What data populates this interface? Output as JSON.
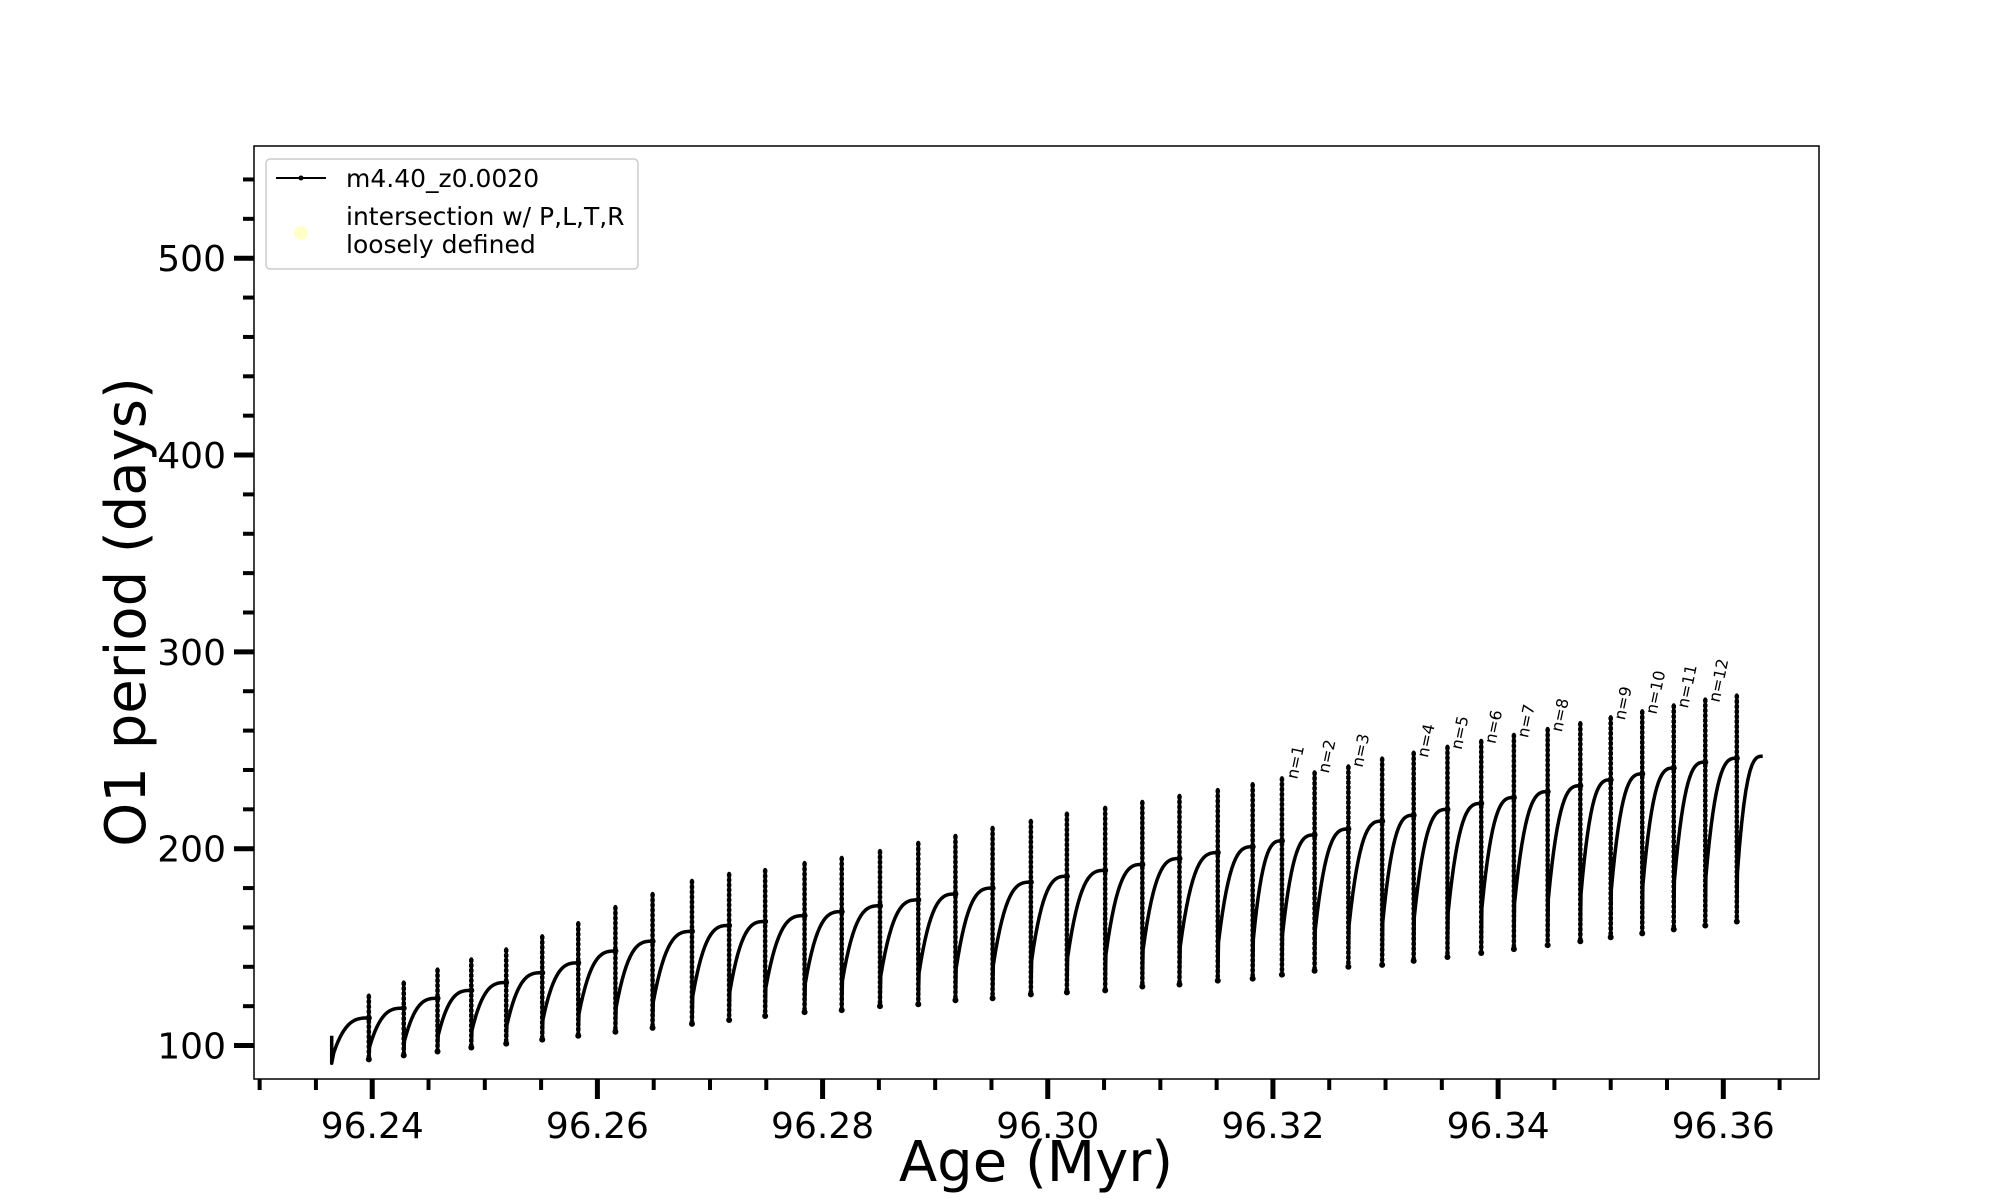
{
  "chart_data": {
    "type": "line",
    "title": "",
    "xlabel": "Age (Myr)",
    "ylabel": "O1 period (days)",
    "xlim": [
      96.2295,
      96.3685
    ],
    "ylim": [
      83,
      557
    ],
    "x_ticks": [
      "96.24",
      "96.26",
      "96.28",
      "96.30",
      "96.32",
      "96.34",
      "96.36"
    ],
    "y_ticks": [
      "100",
      "200",
      "300",
      "400",
      "500"
    ],
    "grid": false,
    "legend_position": "top-left",
    "series": [
      {
        "name": "m4.40_z0.0020",
        "color": "#000000",
        "style": "line with small dot markers",
        "start": {
          "x": 96.2364,
          "y": 105
        },
        "end": {
          "x": 96.3635,
          "y": 247
        },
        "pulses": [
          {
            "x": 96.2397,
            "peak": 114,
            "low": 93
          },
          {
            "x": 96.2428,
            "peak": 119,
            "low": 95
          },
          {
            "x": 96.2458,
            "peak": 124,
            "low": 97
          },
          {
            "x": 96.2488,
            "peak": 128,
            "low": 99
          },
          {
            "x": 96.2519,
            "peak": 132,
            "low": 101
          },
          {
            "x": 96.2551,
            "peak": 137,
            "low": 103
          },
          {
            "x": 96.2583,
            "peak": 142,
            "low": 105
          },
          {
            "x": 96.2616,
            "peak": 148,
            "low": 107
          },
          {
            "x": 96.2649,
            "peak": 153,
            "low": 109
          },
          {
            "x": 96.2684,
            "peak": 158,
            "low": 111
          },
          {
            "x": 96.2717,
            "peak": 161,
            "low": 113
          },
          {
            "x": 96.2749,
            "peak": 163,
            "low": 115
          },
          {
            "x": 96.2784,
            "peak": 166,
            "low": 117
          },
          {
            "x": 96.2817,
            "peak": 168,
            "low": 118
          },
          {
            "x": 96.2851,
            "peak": 171,
            "low": 120
          },
          {
            "x": 96.2885,
            "peak": 174,
            "low": 121
          },
          {
            "x": 96.2918,
            "peak": 177,
            "low": 123
          },
          {
            "x": 96.2951,
            "peak": 180,
            "low": 124
          },
          {
            "x": 96.2985,
            "peak": 183,
            "low": 126
          },
          {
            "x": 96.3017,
            "peak": 186,
            "low": 127
          },
          {
            "x": 96.3051,
            "peak": 189,
            "low": 128
          },
          {
            "x": 96.3084,
            "peak": 192,
            "low": 130
          },
          {
            "x": 96.3117,
            "peak": 195,
            "low": 131
          },
          {
            "x": 96.3151,
            "peak": 198,
            "low": 133
          },
          {
            "x": 96.3182,
            "peak": 201,
            "low": 134
          },
          {
            "x": 96.3208,
            "peak": 204,
            "low": 136
          },
          {
            "x": 96.3237,
            "peak": 207,
            "low": 138
          },
          {
            "x": 96.3267,
            "peak": 210,
            "low": 140
          },
          {
            "x": 96.3297,
            "peak": 214,
            "low": 141
          },
          {
            "x": 96.3325,
            "peak": 217,
            "low": 143
          },
          {
            "x": 96.3355,
            "peak": 220,
            "low": 145
          },
          {
            "x": 96.3385,
            "peak": 223,
            "low": 147
          },
          {
            "x": 96.3414,
            "peak": 226,
            "low": 149
          },
          {
            "x": 96.3444,
            "peak": 229,
            "low": 151
          },
          {
            "x": 96.3473,
            "peak": 232,
            "low": 153
          },
          {
            "x": 96.35,
            "peak": 235,
            "low": 155
          },
          {
            "x": 96.3528,
            "peak": 238,
            "low": 157
          },
          {
            "x": 96.3556,
            "peak": 241,
            "low": 159
          },
          {
            "x": 96.3584,
            "peak": 244,
            "low": 161
          },
          {
            "x": 96.3612,
            "peak": 246,
            "low": 163
          }
        ]
      }
    ],
    "legend": [
      {
        "label": "m4.40_z0.0020",
        "marker": "line"
      },
      {
        "label_lines": [
          "intersection w/ P,L,T,R",
          "loosely defined"
        ],
        "marker": "circle",
        "color": "#ffffc0"
      }
    ],
    "annotations": [
      {
        "text": "n=1",
        "x": 96.3209,
        "y": 235
      },
      {
        "text": "n=2",
        "x": 96.3237,
        "y": 238
      },
      {
        "text": "n=3",
        "x": 96.3267,
        "y": 241
      },
      {
        "text": "n=4",
        "x": 96.3325,
        "y": 246
      },
      {
        "text": "n=5",
        "x": 96.3355,
        "y": 250
      },
      {
        "text": "n=6",
        "x": 96.3385,
        "y": 253
      },
      {
        "text": "n=7",
        "x": 96.3414,
        "y": 256
      },
      {
        "text": "n=8",
        "x": 96.3444,
        "y": 259
      },
      {
        "text": "n=9",
        "x": 96.35,
        "y": 265
      },
      {
        "text": "n=10",
        "x": 96.3528,
        "y": 268
      },
      {
        "text": "n=11",
        "x": 96.3556,
        "y": 271
      },
      {
        "text": "n=12",
        "x": 96.3584,
        "y": 274
      }
    ]
  }
}
